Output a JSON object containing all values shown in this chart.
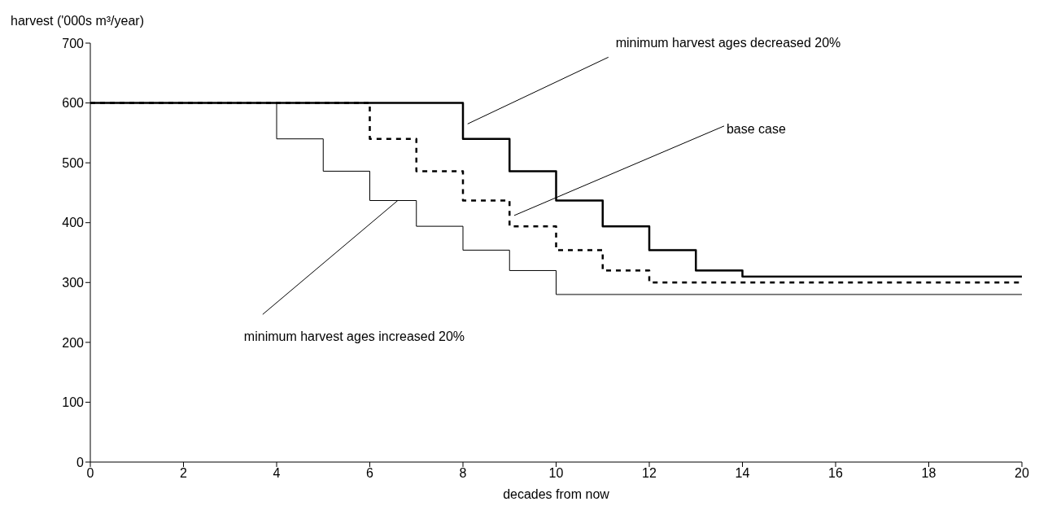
{
  "chart_data": {
    "type": "step",
    "ylabel": "harvest ('000s m³/year)",
    "xlabel": "decades from now",
    "xlim": [
      0,
      20
    ],
    "xticks": [
      0,
      2,
      4,
      6,
      8,
      10,
      12,
      14,
      16,
      18,
      20
    ],
    "ylim": [
      0,
      700
    ],
    "yticks": [
      0,
      100,
      200,
      300,
      400,
      500,
      600,
      700
    ],
    "marker": "none",
    "series": [
      {
        "color": "#000000",
        "line_style": "solid",
        "x": [
          0,
          8,
          9,
          10,
          11,
          12,
          13,
          14,
          20
        ],
        "values": [
          600,
          540,
          486,
          437,
          394,
          354,
          320,
          310,
          310
        ]
      },
      {
        "color": "#000000",
        "line_style": "dashed",
        "x": [
          0,
          6,
          7,
          8,
          9,
          10,
          11,
          12,
          20
        ],
        "values": [
          600,
          540,
          486,
          437,
          394,
          354,
          320,
          300,
          300
        ]
      },
      {
        "color": "#000000",
        "line_style": "solid",
        "x": [
          0,
          4,
          5,
          6,
          7,
          8,
          9,
          10,
          20
        ],
        "values": [
          600,
          540,
          486,
          437,
          394,
          354,
          320,
          280,
          280
        ]
      }
    ],
    "annotations": [
      {
        "text": "minimum harvest ages decreased 20%",
        "x": 8.1,
        "y": 565
      },
      {
        "text": "base case",
        "x": 9.1,
        "y": 412
      },
      {
        "text": "minimum harvest ages increased 20%",
        "x": 6.6,
        "y": 437
      }
    ]
  }
}
